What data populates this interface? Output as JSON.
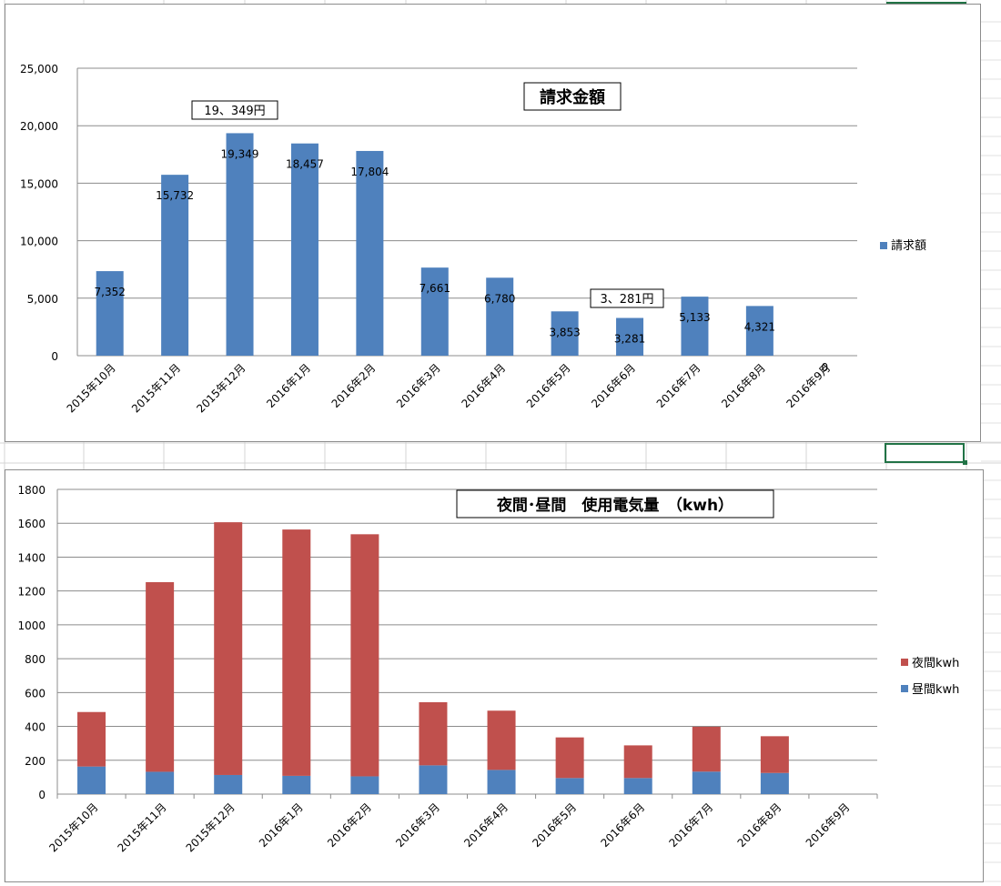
{
  "chart_data": [
    {
      "type": "bar",
      "title": "請求金額",
      "categories": [
        "2015年10月",
        "2015年11月",
        "2015年12月",
        "2016年1月",
        "2016年2月",
        "2016年3月",
        "2016年4月",
        "2016年5月",
        "2016年6月",
        "2016年7月",
        "2016年8月",
        "2016年9月"
      ],
      "series": [
        {
          "name": "請求額",
          "values": [
            7352,
            15732,
            19349,
            18457,
            17804,
            7661,
            6780,
            3853,
            3281,
            5133,
            4321,
            0
          ]
        }
      ],
      "data_labels": [
        "7,352",
        "15,732",
        "19,349",
        "18,457",
        "17,804",
        "7,661",
        "6,780",
        "3,853",
        "3,281",
        "5,133",
        "4,321",
        "0"
      ],
      "ylim": [
        0,
        25000
      ],
      "yticks": [
        0,
        5000,
        10000,
        15000,
        20000,
        25000
      ],
      "ytick_labels": [
        "0",
        "5,000",
        "10,000",
        "15,000",
        "20,000",
        "25,000"
      ],
      "grid": true,
      "legend": "right",
      "annotations": [
        {
          "text": "19、349円",
          "category": "2015年12月"
        },
        {
          "text": "3、281円",
          "category": "2016年6月"
        }
      ],
      "colors": {
        "bar": "#4f81bd"
      }
    },
    {
      "type": "bar",
      "stacked": true,
      "title": "夜間･昼間　使用電気量　（kwh）",
      "categories": [
        "2015年10月",
        "2015年11月",
        "2015年12月",
        "2016年1月",
        "2016年2月",
        "2016年3月",
        "2016年4月",
        "2016年5月",
        "2016年6月",
        "2016年7月",
        "2016年8月",
        "2016年9月"
      ],
      "series": [
        {
          "name": "昼間kwh",
          "values": [
            163,
            132,
            113,
            108,
            105,
            170,
            143,
            95,
            95,
            133,
            125,
            0
          ]
        },
        {
          "name": "夜間kwh",
          "values": [
            322,
            1120,
            1493,
            1455,
            1430,
            373,
            350,
            240,
            193,
            265,
            217,
            0
          ]
        }
      ],
      "ylim": [
        0,
        1800
      ],
      "yticks": [
        0,
        200,
        400,
        600,
        800,
        1000,
        1200,
        1400,
        1600,
        1800
      ],
      "ytick_labels": [
        "0",
        "200",
        "400",
        "600",
        "800",
        "1000",
        "1200",
        "1400",
        "1600",
        "1800"
      ],
      "grid": true,
      "legend": "right",
      "colors": {
        "昼間kwh": "#4f81bd",
        "夜間kwh": "#c0504d"
      }
    }
  ]
}
